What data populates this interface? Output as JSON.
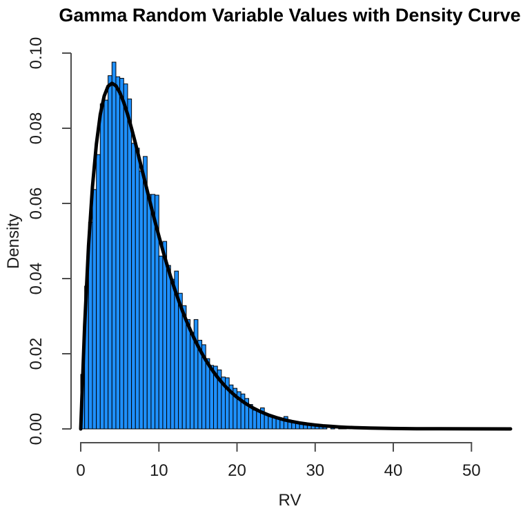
{
  "chart_data": {
    "type": "bar",
    "subtype": "histogram-with-density-curve",
    "title": "Gamma Random Variable Values with Density Curve",
    "xlabel": "RV",
    "ylabel": "Density",
    "xlim": [
      0,
      55
    ],
    "ylim": [
      0,
      0.104
    ],
    "x_ticks": [
      0,
      10,
      20,
      30,
      40,
      50
    ],
    "y_tick_values": [
      0.0,
      0.02,
      0.04,
      0.06,
      0.08,
      0.1
    ],
    "y_tick_labels": [
      "0.00",
      "0.02",
      "0.04",
      "0.06",
      "0.08",
      "0.10"
    ],
    "grid": "off",
    "legend": "none",
    "bins": {
      "start": 0,
      "bin_width": 0.5,
      "densities": [
        0.0145,
        0.038,
        0.055,
        0.0637,
        0.073,
        0.0865,
        0.0875,
        0.094,
        0.0976,
        0.0937,
        0.0933,
        0.0918,
        0.0878,
        0.076,
        0.0747,
        0.0686,
        0.0725,
        0.0624,
        0.0624,
        0.0622,
        0.046,
        0.0499,
        0.0435,
        0.0398,
        0.042,
        0.0361,
        0.0328,
        0.0291,
        0.0257,
        0.0291,
        0.0236,
        0.0224,
        0.0187,
        0.0169,
        0.0167,
        0.0157,
        0.0138,
        0.0136,
        0.0117,
        0.0108,
        0.0099,
        0.0093,
        0.0081,
        0.0065,
        0.005,
        0.0048,
        0.0056,
        0.004,
        0.0036,
        0.0032,
        0.0028,
        0.0026,
        0.0033,
        0.0022,
        0.002,
        0.0019,
        0.0016,
        0.0014,
        0.0012,
        0.0011,
        0.001,
        0.0009,
        0.0007,
        0.0,
        0.0005,
        0.0,
        0.0004,
        0.0003
      ]
    },
    "curve": {
      "name": "gamma-density-curve",
      "distribution": "Gamma(shape=2, scale=4)",
      "points": [
        [
          0,
          0
        ],
        [
          0.5,
          0.02758
        ],
        [
          1,
          0.04867
        ],
        [
          1.5,
          0.06443
        ],
        [
          2,
          0.07582
        ],
        [
          2.5,
          0.08364
        ],
        [
          3,
          0.08857
        ],
        [
          3.5,
          0.09119
        ],
        [
          4,
          0.09197
        ],
        [
          4.5,
          0.09131
        ],
        [
          5,
          0.08953
        ],
        [
          5.5,
          0.08691
        ],
        [
          6,
          0.08367
        ],
        [
          6.5,
          0.08
        ],
        [
          7,
          0.07602
        ],
        [
          7.5,
          0.07188
        ],
        [
          8,
          0.06767
        ],
        [
          8.5,
          0.06345
        ],
        [
          9,
          0.05929
        ],
        [
          9.5,
          0.05522
        ],
        [
          10,
          0.0513
        ],
        [
          10.5,
          0.04754
        ],
        [
          11,
          0.04395
        ],
        [
          11.5,
          0.04055
        ],
        [
          12,
          0.03734
        ],
        [
          12.5,
          0.03433
        ],
        [
          13,
          0.0315
        ],
        [
          13.5,
          0.02887
        ],
        [
          14,
          0.02642
        ],
        [
          14.5,
          0.02415
        ],
        [
          15,
          0.02205
        ],
        [
          15.5,
          0.02011
        ],
        [
          16,
          0.01832
        ],
        [
          16.5,
          0.01667
        ],
        [
          17,
          0.01516
        ],
        [
          17.5,
          0.01377
        ],
        [
          18,
          0.0125
        ],
        [
          18.5,
          0.01134
        ],
        [
          19,
          0.01027
        ],
        [
          19.5,
          0.0093
        ],
        [
          20,
          0.00842
        ],
        [
          21,
          0.00689
        ],
        [
          22,
          0.00562
        ],
        [
          23,
          0.00458
        ],
        [
          24,
          0.00372
        ],
        [
          25,
          0.00302
        ],
        [
          26,
          0.00244
        ],
        [
          27,
          0.00198
        ],
        [
          28,
          0.0016
        ],
        [
          29,
          0.00129
        ],
        [
          30,
          0.00104
        ],
        [
          31,
          0.00083
        ],
        [
          32,
          0.00067
        ],
        [
          33,
          0.00054
        ],
        [
          34,
          0.00043
        ],
        [
          35,
          0.00035
        ],
        [
          37,
          0.00022
        ],
        [
          40,
          0.00011
        ],
        [
          43,
          6e-05
        ],
        [
          46,
          3e-05
        ],
        [
          50,
          1e-05
        ],
        [
          55,
          0.0
        ]
      ]
    },
    "colors": {
      "bar_fill": "#1E90FF",
      "bar_border": "#000000",
      "curve": "#000000",
      "axis": "#4c4c4c",
      "text": "#1c1c1c",
      "title": "#000000",
      "background": "#ffffff"
    }
  }
}
